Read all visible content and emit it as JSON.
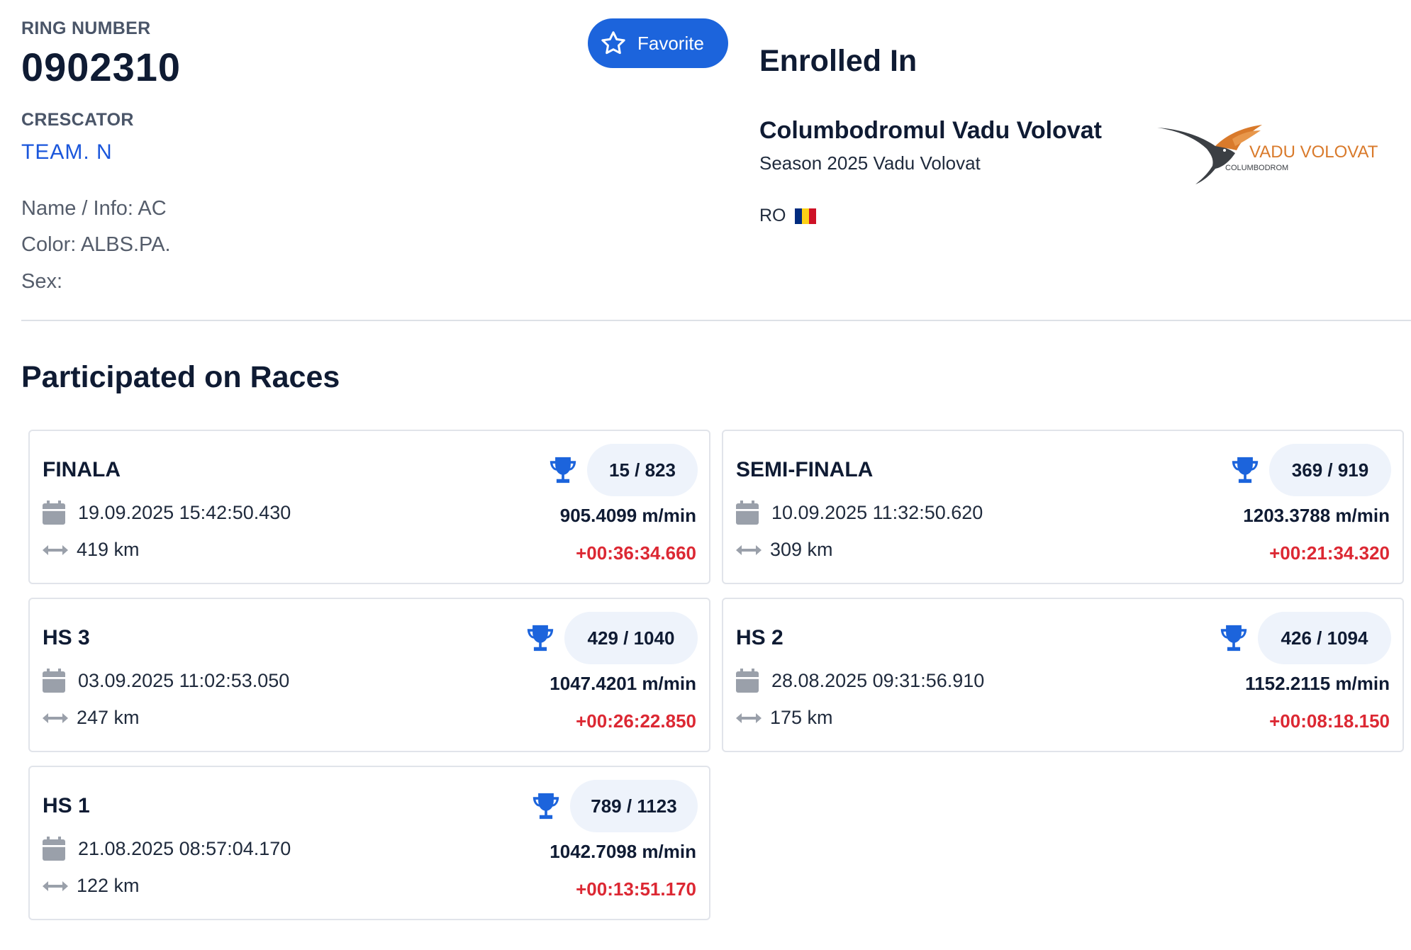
{
  "bird": {
    "ring_label": "RING NUMBER",
    "ring_number": "0902310",
    "crescator_label": "CRESCATOR",
    "crescator_value": "TEAM. N",
    "name_info": "Name / Info: AC",
    "color": "Color: ALBS.PA.",
    "sex": "Sex:"
  },
  "favorite": {
    "label": "Favorite",
    "icon": "star-icon"
  },
  "enrolled": {
    "title": "Enrolled In",
    "club_name": "Columbodromul Vadu Volovat",
    "season": "Season 2025 Vadu Volovat",
    "country": "RO",
    "logo": {
      "main": "VADU VOLOVAT",
      "sub": "COLUMBODROM"
    },
    "colors": {
      "accent": "#1c64dc",
      "flag_blue": "#002b7f",
      "flag_yellow": "#fcd116",
      "flag_red": "#ce1126"
    }
  },
  "races_title": "Participated on Races",
  "races": [
    {
      "name": "FINALA",
      "rank": "15 / 823",
      "date": "19.09.2025 15:42:50.430",
      "distance": "419 km",
      "speed": "905.4099 m/min",
      "delay": "+00:36:34.660"
    },
    {
      "name": "SEMI-FINALA",
      "rank": "369 / 919",
      "date": "10.09.2025 11:32:50.620",
      "distance": "309 km",
      "speed": "1203.3788 m/min",
      "delay": "+00:21:34.320"
    },
    {
      "name": "HS 3",
      "rank": "429 / 1040",
      "date": "03.09.2025 11:02:53.050",
      "distance": "247 km",
      "speed": "1047.4201 m/min",
      "delay": "+00:26:22.850"
    },
    {
      "name": "HS 2",
      "rank": "426 / 1094",
      "date": "28.08.2025 09:31:56.910",
      "distance": "175 km",
      "speed": "1152.2115 m/min",
      "delay": "+00:08:18.150"
    },
    {
      "name": "HS 1",
      "rank": "789 / 1123",
      "date": "21.08.2025 08:57:04.170",
      "distance": "122 km",
      "speed": "1042.7098 m/min",
      "delay": "+00:13:51.170"
    }
  ],
  "icons": {
    "trophy": "trophy-icon",
    "calendar": "calendar-icon",
    "distance": "distance-arrows-icon"
  }
}
